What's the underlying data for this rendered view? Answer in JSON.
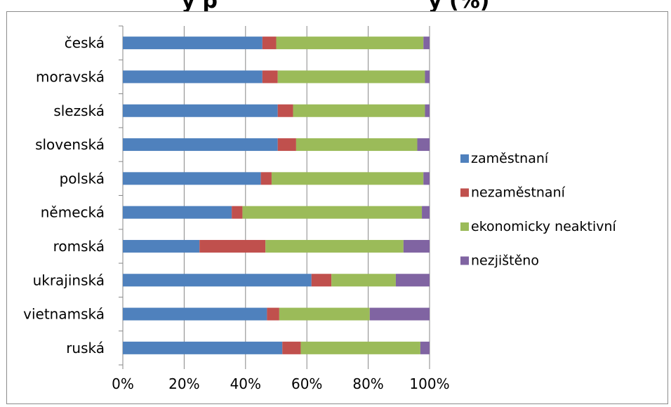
{
  "chart_data": {
    "type": "bar",
    "orientation": "horizontal",
    "stacked": "percent",
    "title": "ý      p",
    "title_suffix": "y          (%)",
    "categories": [
      "česká",
      "moravská",
      "slezská",
      "slovenská",
      "polská",
      "německá",
      "romská",
      "ukrajinská",
      "vietnamská",
      "ruská"
    ],
    "series": [
      {
        "name": "zaměstnaní",
        "color": "#4f81bd",
        "values": [
          45.5,
          45.5,
          50.5,
          50.5,
          45,
          35.5,
          25,
          61.5,
          47,
          52
        ]
      },
      {
        "name": "nezaměstnaní",
        "color": "#c0504d",
        "values": [
          4.5,
          5,
          5,
          6,
          3.5,
          3.5,
          21.5,
          6.5,
          4,
          6
        ]
      },
      {
        "name": "ekonomicky neaktivní",
        "color": "#9bbb59",
        "values": [
          48,
          48,
          43,
          39.5,
          49.5,
          58.5,
          45,
          21,
          29.5,
          39
        ]
      },
      {
        "name": "nezjištěno",
        "color": "#8064a2",
        "values": [
          2,
          1.5,
          1.5,
          4,
          2,
          2.5,
          8.5,
          11,
          19.5,
          3
        ]
      }
    ],
    "xlim": [
      0,
      100
    ],
    "xticks": [
      "0%",
      "20%",
      "40%",
      "60%",
      "80%",
      "100%"
    ],
    "grid": true,
    "legend_position": "right"
  }
}
